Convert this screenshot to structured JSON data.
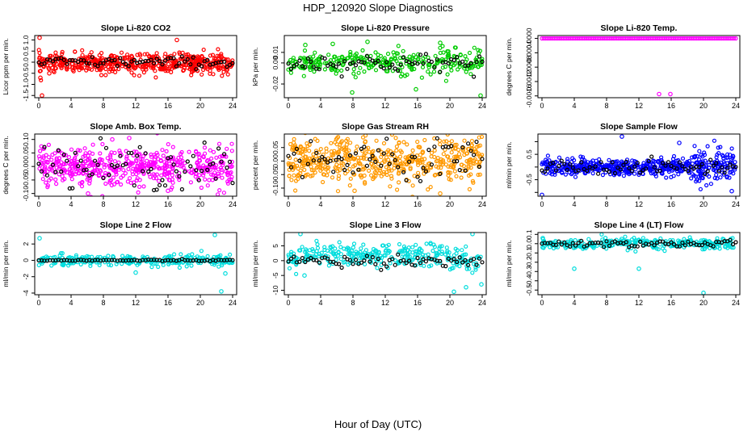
{
  "page": {
    "title": "HDP_120920  Slope Diagnostics",
    "xlabel": "Hour of Day (UTC)"
  },
  "chart_data": [
    {
      "type": "scatter",
      "title": "Slope Li-820 CO2",
      "ylabel": "Licor ppm per min.",
      "xlim": [
        -0.5,
        24.5
      ],
      "xticks": [
        0,
        4,
        8,
        12,
        16,
        20,
        24
      ],
      "ylim": [
        -1.6,
        1.2
      ],
      "yticks": [
        -1.5,
        -1.0,
        -0.5,
        0.0,
        0.5,
        1.0
      ],
      "yticklabels": [
        "-1.5",
        "-1.0",
        "-0.5",
        "0.0",
        "0.5",
        "1.0"
      ],
      "color": "#ff0000",
      "fill": "#ff0000",
      "density": "heavy",
      "center": -0.05,
      "spread": 0.22,
      "outliers": [
        [
          0.1,
          1.1
        ],
        [
          0.4,
          -1.5
        ],
        [
          17.1,
          1.0
        ],
        [
          0.2,
          -0.7
        ],
        [
          1.3,
          -0.5
        ]
      ],
      "black": {
        "center": 0.0,
        "spread": 0.12
      }
    },
    {
      "type": "scatter",
      "title": "Slope Li-820 Pressure",
      "ylabel": "kPa per min.",
      "xlim": [
        -0.5,
        24.5
      ],
      "xticks": [
        0,
        4,
        8,
        12,
        16,
        20,
        24
      ],
      "ylim": [
        -0.033,
        0.026
      ],
      "yticks": [
        -0.02,
        0.0,
        0.01
      ],
      "yticklabels": [
        "-0.02",
        "0.00",
        "0.01"
      ],
      "color": "#00cc00",
      "fill": "#00ff00",
      "density": "medium",
      "center": 0.0,
      "spread": 0.006,
      "outliers": [
        [
          7.9,
          -0.028
        ],
        [
          15.8,
          -0.025
        ],
        [
          23.8,
          -0.031
        ],
        [
          2.1,
          0.017
        ],
        [
          5.5,
          0.018
        ],
        [
          9.8,
          0.02
        ],
        [
          18.8,
          0.019
        ]
      ],
      "black": {
        "center": 0.0,
        "spread": 0.0045
      }
    },
    {
      "type": "scatter",
      "title": "Slope Li-820 Temp.",
      "ylabel": "degrees C per min.",
      "xlim": [
        -0.5,
        24.5
      ],
      "xticks": [
        0,
        4,
        8,
        12,
        16,
        20,
        24
      ],
      "ylim": [
        -0.00165,
        8e-05
      ],
      "yticks": [
        -0.0016,
        -0.0012,
        -0.0008,
        -0.0004,
        0.0
      ],
      "yticklabels": [
        "-0.0016",
        "-0.0012",
        "-0.0008",
        "-0.0004",
        "0.0000"
      ],
      "color": "#ff00ff",
      "fill": "#ff00ff",
      "density": "line",
      "center": 0.0,
      "spread": 0.0,
      "outliers": [
        [
          14.5,
          -0.00155
        ],
        [
          15.9,
          -0.00155
        ]
      ],
      "black": {
        "center": 0.0,
        "spread": 0.0
      }
    },
    {
      "type": "scatter",
      "title": "Slope Amb. Box Temp.",
      "ylabel": "degrees C per min.",
      "xlim": [
        -0.5,
        24.5
      ],
      "xticks": [
        0,
        4,
        8,
        12,
        16,
        20,
        24
      ],
      "ylim": [
        -0.11,
        0.12
      ],
      "yticks": [
        -0.1,
        -0.05,
        0.0,
        0.05,
        0.1
      ],
      "yticklabels": [
        "-0.10",
        "-0.05",
        "0.00",
        "0.05",
        "0.10"
      ],
      "color": "#ff00ff",
      "fill": "#ff66ff",
      "density": "heavy",
      "center": 0.0,
      "spread": 0.035,
      "outliers": [
        [
          11.2,
          0.105
        ],
        [
          6.1,
          -0.1
        ],
        [
          9.1,
          0.1
        ],
        [
          16.0,
          -0.09
        ]
      ],
      "black": {
        "center": 0.0,
        "spread": 0.04
      }
    },
    {
      "type": "scatter",
      "title": "Slope Gas Stream RH",
      "ylabel": "percent per min.",
      "xlim": [
        -0.5,
        24.5
      ],
      "xticks": [
        0,
        4,
        8,
        12,
        16,
        20,
        24
      ],
      "ylim": [
        -0.13,
        0.1
      ],
      "yticks": [
        -0.1,
        -0.05,
        0.0,
        0.05
      ],
      "yticklabels": [
        "-0.10",
        "-0.05",
        "0.00",
        "0.05"
      ],
      "color": "#ff9900",
      "fill": "#ffbb44",
      "density": "heavy",
      "center": 0.0,
      "spread": 0.045,
      "outliers": [
        [
          9.5,
          0.07
        ],
        [
          18.8,
          -0.12
        ],
        [
          8.2,
          -0.11
        ]
      ],
      "black": {
        "center": 0.0,
        "spread": 0.04
      }
    },
    {
      "type": "scatter",
      "title": "Slope Sample Flow",
      "ylabel": "ml/min per min.",
      "xlim": [
        -0.5,
        24.5
      ],
      "xticks": [
        0,
        4,
        8,
        12,
        16,
        20,
        24
      ],
      "ylim": [
        -1.15,
        1.3
      ],
      "yticks": [
        -1.0,
        -0.5,
        0.0,
        0.5,
        1.0
      ],
      "yticklabels": [
        "",
        "-0.5",
        "",
        "0.5",
        ""
      ],
      "color": "#0000ff",
      "fill": "#0000ff",
      "density": "heavy",
      "center": 0.0,
      "spread": 0.15,
      "outliers": [
        [
          9.9,
          1.2
        ],
        [
          0.0,
          -1.1
        ],
        [
          17.0,
          0.95
        ],
        [
          23.5,
          -0.95
        ]
      ],
      "black": {
        "center": 0.0,
        "spread": 0.15
      }
    },
    {
      "type": "scatter",
      "title": "Slope Line 2 Flow",
      "ylabel": "ml/min per min.",
      "xlim": [
        -0.5,
        24.5
      ],
      "xticks": [
        0,
        4,
        8,
        12,
        16,
        20,
        24
      ],
      "ylim": [
        -4.2,
        3.4
      ],
      "yticks": [
        -4,
        -2,
        0,
        2
      ],
      "yticklabels": [
        "-4",
        "-2",
        "0",
        "2"
      ],
      "color": "#00dddd",
      "fill": "#00ffff",
      "density": "medium",
      "center": 0.0,
      "spread": 0.3,
      "outliers": [
        [
          0.1,
          2.7
        ],
        [
          12.0,
          -1.5
        ],
        [
          21.8,
          3.1
        ],
        [
          22.6,
          -3.8
        ],
        [
          23.1,
          -1.6
        ]
      ],
      "black": {
        "center": 0.0,
        "spread": 0.05
      }
    },
    {
      "type": "scatter",
      "title": "Slope Line 3 Flow",
      "ylabel": "ml/min per min.",
      "xlim": [
        -0.5,
        24.5
      ],
      "xticks": [
        0,
        4,
        8,
        12,
        16,
        20,
        24
      ],
      "ylim": [
        -11.5,
        9.5
      ],
      "yticks": [
        -10,
        -5,
        0,
        5
      ],
      "yticklabels": [
        "-10",
        "-5",
        "0",
        "5"
      ],
      "color": "#00dddd",
      "fill": "#00ffff",
      "density": "medium",
      "center": 2.0,
      "spread": 2.0,
      "outliers": [
        [
          1.5,
          9.0
        ],
        [
          20.5,
          -10.5
        ],
        [
          22.0,
          -9.0
        ],
        [
          23.9,
          -8.0
        ],
        [
          2.0,
          -5.0
        ],
        [
          22.8,
          9.0
        ]
      ],
      "black": {
        "center": 0.0,
        "spread": 1.0
      }
    },
    {
      "type": "scatter",
      "title": "Slope Line 4 (LT) Flow",
      "ylabel": "ml/min per min.",
      "xlim": [
        -0.5,
        24.5
      ],
      "xticks": [
        0,
        4,
        8,
        12,
        16,
        20,
        24
      ],
      "ylim": [
        -0.55,
        0.12
      ],
      "yticks": [
        -0.5,
        -0.4,
        -0.3,
        -0.2,
        -0.1,
        0.0,
        0.1
      ],
      "yticklabels": [
        "-0.5",
        "-0.4",
        "-0.3",
        "-0.2",
        "-0.1",
        "0.0",
        "0.1"
      ],
      "color": "#00dddd",
      "fill": "#00ffff",
      "density": "medium",
      "center": 0.0,
      "spread": 0.03,
      "outliers": [
        [
          4.0,
          -0.27
        ],
        [
          12.0,
          -0.27
        ],
        [
          20.0,
          -0.53
        ],
        [
          0.1,
          0.06
        ]
      ],
      "black": {
        "center": 0.0,
        "spread": 0.02
      }
    }
  ]
}
